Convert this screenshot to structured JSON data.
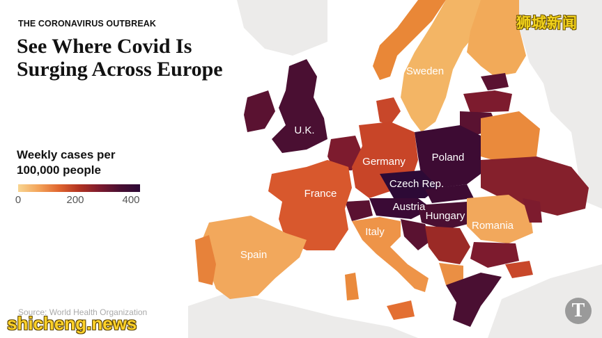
{
  "header": {
    "kicker": "THE CORONAVIRUS OUTBREAK",
    "headline": "See Where Covid Is Surging Across Europe"
  },
  "legend": {
    "title": "Weekly cases per\n100,000 people",
    "ticks": [
      "0",
      "200",
      "400"
    ],
    "tick_values": [
      0,
      200,
      400
    ],
    "color_stops": [
      "#f8d591",
      "#f3a45a",
      "#e0662f",
      "#b13322",
      "#7d1b2e",
      "#4a0f32",
      "#2d0a36"
    ]
  },
  "map": {
    "sea_color": "#ffffff",
    "land_outside_color": "#ecebea",
    "country_labels": [
      "U.K.",
      "Germany",
      "Poland",
      "Czech Rep.",
      "France",
      "Austria",
      "Hungary",
      "Romania",
      "Italy",
      "Spain",
      "Sweden"
    ]
  },
  "source": "Source: World Health Organization",
  "watermarks": {
    "top_right": "狮城新闻",
    "bottom_left": "shicheng.news",
    "logo": "T"
  }
}
